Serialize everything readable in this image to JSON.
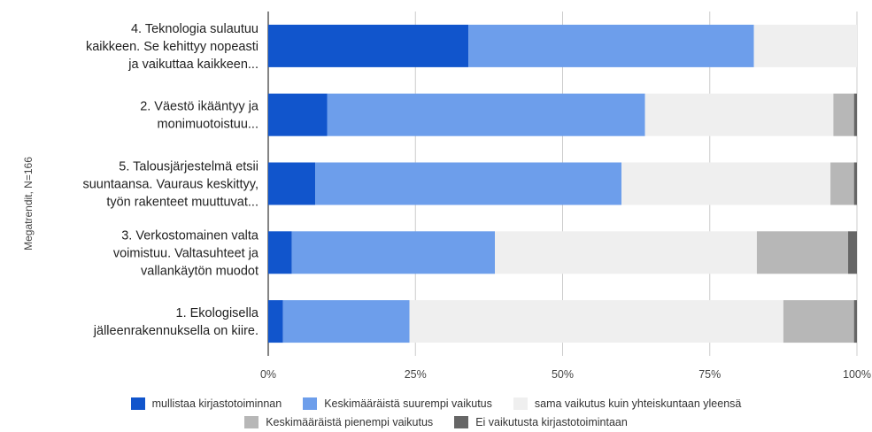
{
  "chart_data": {
    "type": "bar",
    "orientation": "horizontal",
    "stacked": "percent",
    "ylabel": "Megatrendit, N=166",
    "categories": [
      [
        "4. Teknologia sulautuu",
        "kaikkeen. Se kehittyy nopeasti",
        "ja vaikuttaa kaikkeen..."
      ],
      [
        "2. Väestö ikääntyy ja",
        "monimuotoistuu..."
      ],
      [
        "5. Talousjärjestelmä etsii",
        "suuntaansa. Vauraus keskittyy,",
        "työn rakenteet muuttuvat..."
      ],
      [
        "3. Verkostomainen valta",
        "voimistuu. Valtasuhteet ja",
        "vallankäytön muodot"
      ],
      [
        "1. Ekologisella",
        "jälleenrakennuksella on kiire."
      ]
    ],
    "x_ticks": [
      "0%",
      "25%",
      "50%",
      "75%",
      "100%"
    ],
    "xlim": [
      0,
      100
    ],
    "grid": true,
    "legend_position": "bottom",
    "series": [
      {
        "name": "mullistaa kirjastotoiminnan",
        "color": "#1155cc",
        "values": [
          34,
          10,
          8,
          4,
          2.5
        ]
      },
      {
        "name": "Keskimääräistä suurempi vaikutus",
        "color": "#6d9eeb",
        "values": [
          48.5,
          54,
          52,
          34.5,
          21.5
        ]
      },
      {
        "name": "sama vaikutus kuin yhteiskuntaan yleensä",
        "color": "#efefef",
        "values": [
          17.5,
          32,
          35.5,
          44.5,
          63.5
        ]
      },
      {
        "name": "Keskimääräistä pienempi vaikutus",
        "color": "#b7b7b7",
        "values": [
          0,
          3.5,
          4,
          15.5,
          12
        ]
      },
      {
        "name": "Ei vaikutusta kirjastotoimintaan",
        "color": "#666666",
        "values": [
          0,
          0.5,
          0.5,
          1.5,
          0.5
        ]
      }
    ]
  }
}
